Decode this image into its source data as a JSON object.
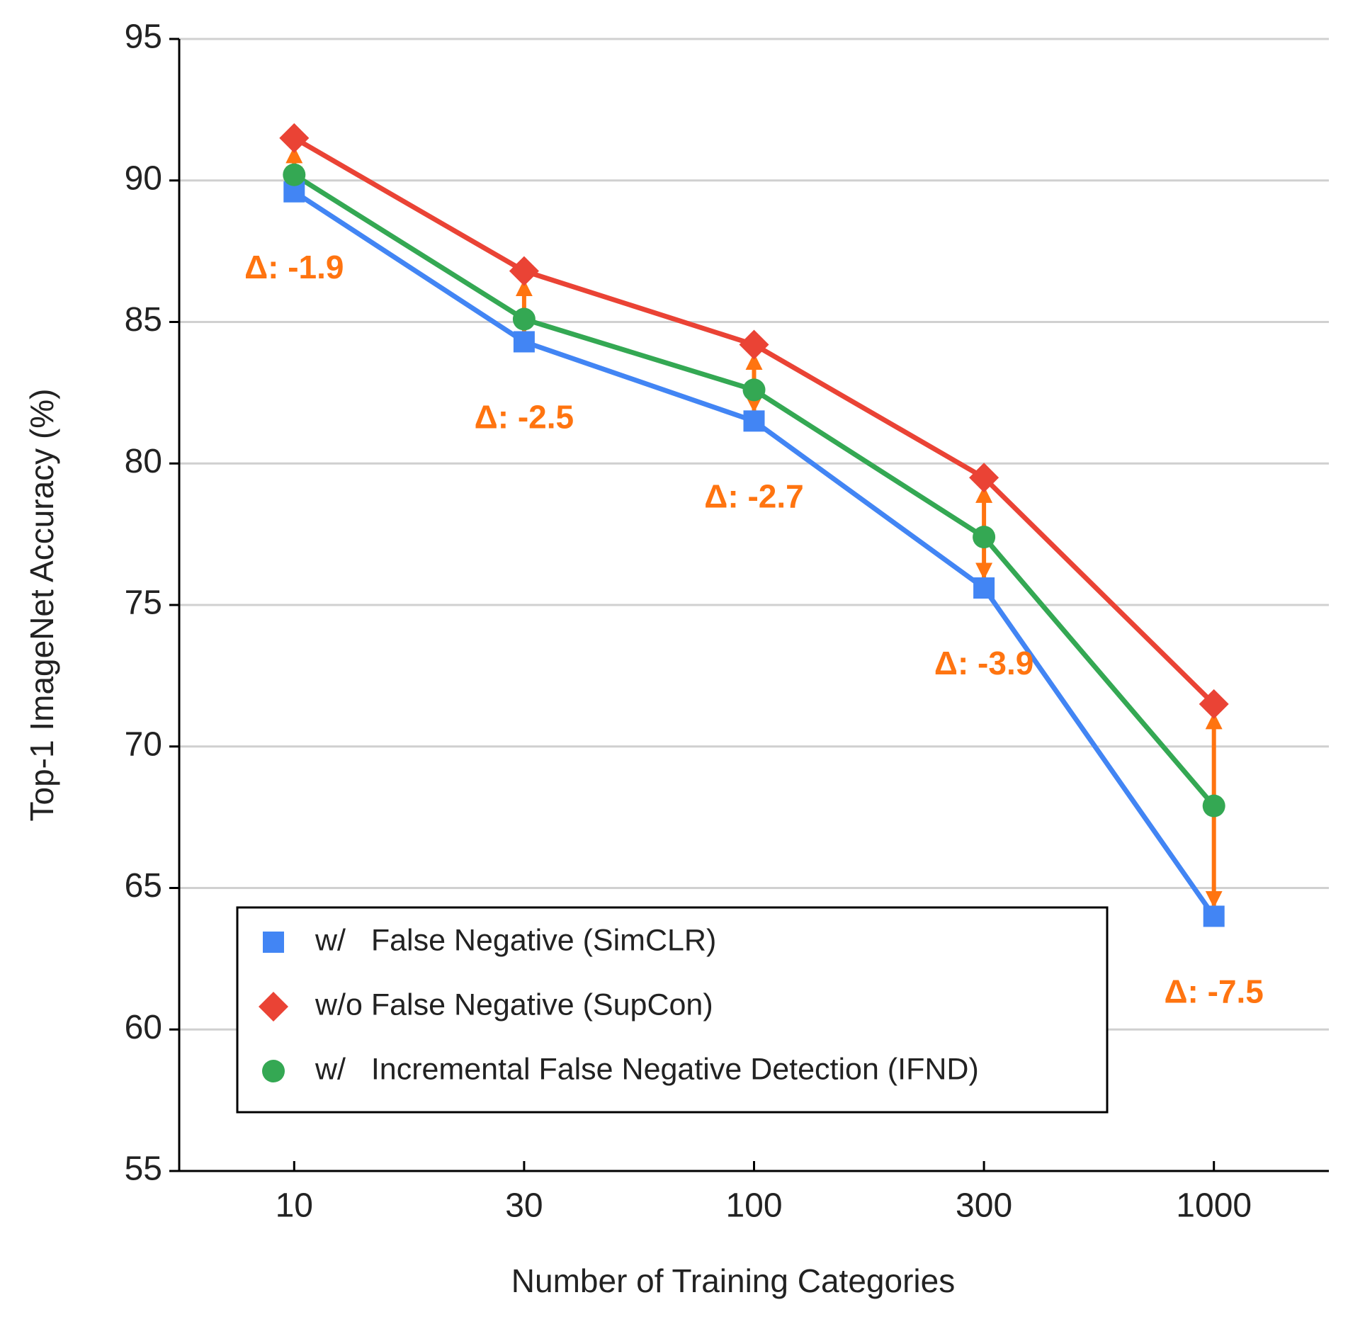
{
  "chart_data": {
    "type": "line",
    "x_label": "Number of Training Categories",
    "y_label": "Top-1 ImageNet Accuracy (%)",
    "categories": [
      "10",
      "30",
      "100",
      "300",
      "1000"
    ],
    "series": [
      {
        "name": "w/   False Negative (SimCLR)",
        "color": "#4285f4",
        "marker": "square",
        "values": [
          89.6,
          84.3,
          81.5,
          75.6,
          64.0
        ]
      },
      {
        "name": "w/o False Negative (SupCon)",
        "color": "#ea4335",
        "marker": "diamond",
        "values": [
          91.5,
          86.8,
          84.2,
          79.5,
          71.5
        ]
      },
      {
        "name": "w/   Incremental False Negative Detection (IFND)",
        "color": "#34a853",
        "marker": "circle",
        "values": [
          90.2,
          85.1,
          82.6,
          77.4,
          67.9
        ]
      }
    ],
    "annotations": [
      "Δ: -1.9",
      "Δ: -2.5",
      "Δ: -2.7",
      "Δ: -3.9",
      "Δ: -7.5"
    ],
    "annotation_color": "#ff7410",
    "ylim": [
      55,
      95
    ],
    "yticks": [
      55,
      60,
      65,
      70,
      75,
      80,
      85,
      90,
      95
    ],
    "grid": true,
    "legend": "lower left"
  }
}
